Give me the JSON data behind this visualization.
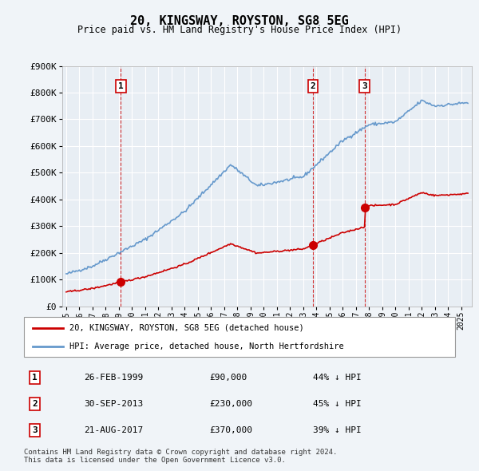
{
  "title": "20, KINGSWAY, ROYSTON, SG8 5EG",
  "subtitle": "Price paid vs. HM Land Registry's House Price Index (HPI)",
  "background_color": "#f0f4f8",
  "plot_bg_color": "#e8eef4",
  "grid_color": "#ffffff",
  "ylim": [
    0,
    900000
  ],
  "yticks": [
    0,
    100000,
    200000,
    300000,
    400000,
    500000,
    600000,
    700000,
    800000,
    900000
  ],
  "sales": [
    {
      "date_num": 1999.15,
      "price": 90000,
      "label": "1"
    },
    {
      "date_num": 2013.75,
      "price": 230000,
      "label": "2"
    },
    {
      "date_num": 2017.65,
      "price": 370000,
      "label": "3"
    }
  ],
  "table_rows": [
    {
      "num": "1",
      "date": "26-FEB-1999",
      "price": "£90,000",
      "hpi": "44% ↓ HPI"
    },
    {
      "num": "2",
      "date": "30-SEP-2013",
      "price": "£230,000",
      "hpi": "45% ↓ HPI"
    },
    {
      "num": "3",
      "date": "21-AUG-2017",
      "price": "£370,000",
      "hpi": "39% ↓ HPI"
    }
  ],
  "legend_line1": "20, KINGSWAY, ROYSTON, SG8 5EG (detached house)",
  "legend_line2": "HPI: Average price, detached house, North Hertfordshire",
  "footer1": "Contains HM Land Registry data © Crown copyright and database right 2024.",
  "footer2": "This data is licensed under the Open Government Licence v3.0.",
  "sale_color": "#cc0000",
  "hpi_color": "#6699cc",
  "vline_color": "#cc0000"
}
